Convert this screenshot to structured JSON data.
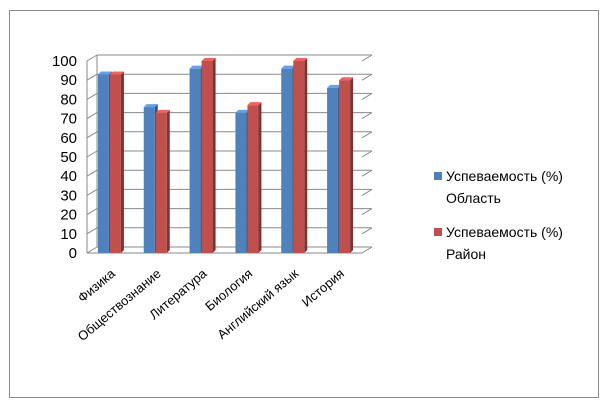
{
  "chart_data": {
    "type": "bar",
    "categories": [
      "Физика",
      "Обществознание",
      "Литература",
      "Биология",
      "Английский язык",
      "История"
    ],
    "series": [
      {
        "name": "Успеваемость (%) Область",
        "name_lines": [
          "Успеваемость (%)",
          "Область"
        ],
        "color": "#4f81bd",
        "values": [
          93,
          76,
          96,
          73,
          96,
          86
        ]
      },
      {
        "name": "Успеваемость (%) Район",
        "name_lines": [
          "Успеваемость (%)",
          "Район"
        ],
        "color": "#c0504d",
        "values": [
          93,
          73,
          100,
          77,
          100,
          90
        ]
      }
    ],
    "ylim": [
      0,
      100
    ],
    "yticks": [
      "0",
      "10",
      "20",
      "30",
      "40",
      "50",
      "60",
      "70",
      "80",
      "90",
      "100"
    ],
    "grid": true,
    "legend_position": "right"
  }
}
